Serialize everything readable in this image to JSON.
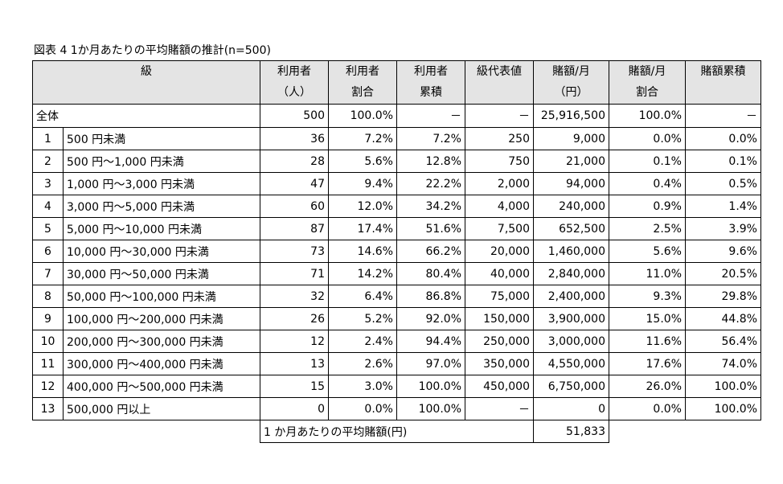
{
  "title": "図表 4 1か月あたりの平均賭額の推計(n=500)",
  "table": {
    "header": [
      "級",
      "利用者\n（人）",
      "利用者\n割合",
      "利用者\n累積",
      "級代表値",
      "賭額/月\n（円）",
      "賭額/月\n割合",
      "賭額累積"
    ],
    "total_row": [
      "全体",
      "500",
      "100.0%",
      "－",
      "－",
      "25,916,500",
      "100.0%",
      "－"
    ],
    "rows": [
      [
        "1",
        "500 円未満",
        "36",
        "7.2%",
        "7.2%",
        "250",
        "9,000",
        "0.0%",
        "0.0%"
      ],
      [
        "2",
        "500 円～1,000 円未満",
        "28",
        "5.6%",
        "12.8%",
        "750",
        "21,000",
        "0.1%",
        "0.1%"
      ],
      [
        "3",
        "1,000 円～3,000 円未満",
        "47",
        "9.4%",
        "22.2%",
        "2,000",
        "94,000",
        "0.4%",
        "0.5%"
      ],
      [
        "4",
        "3,000 円～5,000 円未満",
        "60",
        "12.0%",
        "34.2%",
        "4,000",
        "240,000",
        "0.9%",
        "1.4%"
      ],
      [
        "5",
        "5,000 円～10,000 円未満",
        "87",
        "17.4%",
        "51.6%",
        "7,500",
        "652,500",
        "2.5%",
        "3.9%"
      ],
      [
        "6",
        "10,000 円～30,000 円未満",
        "73",
        "14.6%",
        "66.2%",
        "20,000",
        "1,460,000",
        "5.6%",
        "9.6%"
      ],
      [
        "7",
        "30,000 円～50,000 円未満",
        "71",
        "14.2%",
        "80.4%",
        "40,000",
        "2,840,000",
        "11.0%",
        "20.5%"
      ],
      [
        "8",
        "50,000 円～100,000 円未満",
        "32",
        "6.4%",
        "86.8%",
        "75,000",
        "2,400,000",
        "9.3%",
        "29.8%"
      ],
      [
        "9",
        "100,000 円～200,000 円未満",
        "26",
        "5.2%",
        "92.0%",
        "150,000",
        "3,900,000",
        "15.0%",
        "44.8%"
      ],
      [
        "10",
        "200,000 円～300,000 円未満",
        "12",
        "2.4%",
        "94.4%",
        "250,000",
        "3,000,000",
        "11.6%",
        "56.4%"
      ],
      [
        "11",
        "300,000 円～400,000 円未満",
        "13",
        "2.6%",
        "97.0%",
        "350,000",
        "4,550,000",
        "17.6%",
        "74.0%"
      ],
      [
        "12",
        "400,000 円～500,000 円未満",
        "15",
        "3.0%",
        "100.0%",
        "450,000",
        "6,750,000",
        "26.0%",
        "100.0%"
      ],
      [
        "13",
        "500,000 円以上",
        "0",
        "0.0%",
        "100.0%",
        "－",
        "0",
        "0.0%",
        "100.0%"
      ]
    ],
    "footer": {
      "label": "1 か月あたりの平均賭額(円)",
      "value": "51,833"
    }
  }
}
